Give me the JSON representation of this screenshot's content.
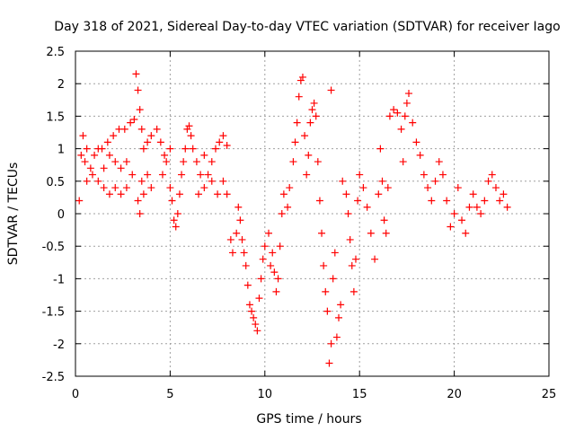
{
  "chart_data": {
    "type": "scatter",
    "title": "Day 318 of 2021, Sidereal Day-to-day VTEC variation (SDTVAR) for receiver Iago",
    "xlabel": "GPS time / hours",
    "ylabel": "SDTVAR / TECUs",
    "xlim": [
      0,
      25
    ],
    "ylim": [
      -2.5,
      2.5
    ],
    "xticks": [
      "0",
      "5",
      "10",
      "15",
      "20",
      "25"
    ],
    "yticks": [
      "2.5",
      "2",
      "1.5",
      "1",
      "0.5",
      "0",
      "-0.5",
      "-1",
      "-1.5",
      "-2",
      "-2.5"
    ],
    "grid": true,
    "marker": "+",
    "color": "#ff0000",
    "series": [
      {
        "name": "SDTVAR",
        "points": [
          [
            0.2,
            0.2
          ],
          [
            0.3,
            0.9
          ],
          [
            0.4,
            1.2
          ],
          [
            0.5,
            0.8
          ],
          [
            0.6,
            1.0
          ],
          [
            0.8,
            0.7
          ],
          [
            1.0,
            0.9
          ],
          [
            1.2,
            1.0
          ],
          [
            0.6,
            0.5
          ],
          [
            0.9,
            0.6
          ],
          [
            1.2,
            0.5
          ],
          [
            1.5,
            0.4
          ],
          [
            1.8,
            0.3
          ],
          [
            2.1,
            0.4
          ],
          [
            2.4,
            0.3
          ],
          [
            2.7,
            0.4
          ],
          [
            1.4,
            1.0
          ],
          [
            1.7,
            1.1
          ],
          [
            2.0,
            1.2
          ],
          [
            2.3,
            1.3
          ],
          [
            2.6,
            1.3
          ],
          [
            2.9,
            1.4
          ],
          [
            3.1,
            1.45
          ],
          [
            1.5,
            0.7
          ],
          [
            1.8,
            0.9
          ],
          [
            2.1,
            0.8
          ],
          [
            2.4,
            0.7
          ],
          [
            2.7,
            0.8
          ],
          [
            3.0,
            0.6
          ],
          [
            3.2,
            2.15
          ],
          [
            3.3,
            1.9
          ],
          [
            3.4,
            1.6
          ],
          [
            3.5,
            1.3
          ],
          [
            3.3,
            0.2
          ],
          [
            3.4,
            0.0
          ],
          [
            3.5,
            0.5
          ],
          [
            3.6,
            0.3
          ],
          [
            3.8,
            0.6
          ],
          [
            4.0,
            0.4
          ],
          [
            3.6,
            1.0
          ],
          [
            3.8,
            1.1
          ],
          [
            4.0,
            1.2
          ],
          [
            4.3,
            1.3
          ],
          [
            4.5,
            1.1
          ],
          [
            4.6,
            0.6
          ],
          [
            4.8,
            0.8
          ],
          [
            5.0,
            0.4
          ],
          [
            5.1,
            0.2
          ],
          [
            4.7,
            0.9
          ],
          [
            5.0,
            1.0
          ],
          [
            5.2,
            -0.1
          ],
          [
            5.3,
            -0.2
          ],
          [
            5.4,
            0.0
          ],
          [
            5.5,
            0.3
          ],
          [
            5.6,
            0.6
          ],
          [
            5.7,
            0.8
          ],
          [
            5.8,
            1.0
          ],
          [
            5.9,
            1.3
          ],
          [
            6.0,
            1.35
          ],
          [
            6.1,
            1.2
          ],
          [
            6.2,
            1.0
          ],
          [
            6.4,
            0.8
          ],
          [
            6.6,
            0.6
          ],
          [
            6.8,
            0.9
          ],
          [
            6.5,
            0.3
          ],
          [
            6.8,
            0.4
          ],
          [
            7.0,
            0.6
          ],
          [
            7.2,
            0.8
          ],
          [
            7.4,
            1.0
          ],
          [
            7.6,
            1.1
          ],
          [
            7.8,
            1.2
          ],
          [
            8.0,
            1.05
          ],
          [
            7.2,
            0.5
          ],
          [
            7.5,
            0.3
          ],
          [
            7.8,
            0.5
          ],
          [
            8.0,
            0.3
          ],
          [
            8.2,
            -0.4
          ],
          [
            8.3,
            -0.6
          ],
          [
            8.5,
            -0.3
          ],
          [
            8.6,
            0.1
          ],
          [
            8.7,
            -0.1
          ],
          [
            8.8,
            -0.4
          ],
          [
            8.9,
            -0.6
          ],
          [
            9.0,
            -0.8
          ],
          [
            9.1,
            -1.1
          ],
          [
            9.2,
            -1.4
          ],
          [
            9.3,
            -1.5
          ],
          [
            9.4,
            -1.6
          ],
          [
            9.5,
            -1.7
          ],
          [
            9.6,
            -1.8
          ],
          [
            9.7,
            -1.3
          ],
          [
            9.8,
            -1.0
          ],
          [
            9.9,
            -0.7
          ],
          [
            10.0,
            -0.5
          ],
          [
            10.2,
            -0.3
          ],
          [
            10.3,
            -0.8
          ],
          [
            10.4,
            -0.6
          ],
          [
            10.5,
            -0.9
          ],
          [
            10.6,
            -1.2
          ],
          [
            10.7,
            -1.0
          ],
          [
            10.8,
            -0.5
          ],
          [
            10.9,
            0.0
          ],
          [
            11.0,
            0.3
          ],
          [
            11.2,
            0.1
          ],
          [
            11.3,
            0.4
          ],
          [
            11.5,
            0.8
          ],
          [
            11.6,
            1.1
          ],
          [
            11.7,
            1.4
          ],
          [
            11.8,
            1.8
          ],
          [
            11.9,
            2.05
          ],
          [
            12.0,
            2.1
          ],
          [
            12.1,
            1.2
          ],
          [
            12.2,
            0.6
          ],
          [
            12.3,
            0.9
          ],
          [
            12.4,
            1.4
          ],
          [
            12.5,
            1.6
          ],
          [
            12.6,
            1.7
          ],
          [
            12.7,
            1.5
          ],
          [
            12.8,
            0.8
          ],
          [
            12.9,
            0.2
          ],
          [
            13.0,
            -0.3
          ],
          [
            13.1,
            -0.8
          ],
          [
            13.2,
            -1.2
          ],
          [
            13.3,
            -1.5
          ],
          [
            13.4,
            -2.3
          ],
          [
            13.5,
            1.9
          ],
          [
            13.5,
            -2.0
          ],
          [
            13.6,
            -1.0
          ],
          [
            13.7,
            -0.6
          ],
          [
            13.8,
            -1.9
          ],
          [
            13.9,
            -1.6
          ],
          [
            14.0,
            -1.4
          ],
          [
            14.1,
            0.5
          ],
          [
            14.3,
            0.3
          ],
          [
            14.4,
            0.0
          ],
          [
            14.5,
            -0.4
          ],
          [
            14.6,
            -0.8
          ],
          [
            14.7,
            -1.2
          ],
          [
            14.8,
            -0.7
          ],
          [
            14.9,
            0.2
          ],
          [
            15.0,
            0.6
          ],
          [
            15.2,
            0.4
          ],
          [
            15.4,
            0.1
          ],
          [
            15.6,
            -0.3
          ],
          [
            15.8,
            -0.7
          ],
          [
            16.0,
            0.3
          ],
          [
            16.1,
            1.0
          ],
          [
            16.2,
            0.5
          ],
          [
            16.3,
            -0.1
          ],
          [
            16.4,
            -0.3
          ],
          [
            16.5,
            0.4
          ],
          [
            16.6,
            1.5
          ],
          [
            16.8,
            1.6
          ],
          [
            17.0,
            1.55
          ],
          [
            17.2,
            1.3
          ],
          [
            17.3,
            0.8
          ],
          [
            17.4,
            1.5
          ],
          [
            17.5,
            1.7
          ],
          [
            17.6,
            1.85
          ],
          [
            17.8,
            1.4
          ],
          [
            18.0,
            1.1
          ],
          [
            18.2,
            0.9
          ],
          [
            18.4,
            0.6
          ],
          [
            18.6,
            0.4
          ],
          [
            18.8,
            0.2
          ],
          [
            19.0,
            0.5
          ],
          [
            19.2,
            0.8
          ],
          [
            19.4,
            0.6
          ],
          [
            19.6,
            0.2
          ],
          [
            19.8,
            -0.2
          ],
          [
            20.0,
            0.0
          ],
          [
            20.2,
            0.4
          ],
          [
            20.4,
            -0.1
          ],
          [
            20.6,
            -0.3
          ],
          [
            20.8,
            0.1
          ],
          [
            21.0,
            0.3
          ],
          [
            21.2,
            0.1
          ],
          [
            21.4,
            0.0
          ],
          [
            21.6,
            0.2
          ],
          [
            21.8,
            0.5
          ],
          [
            22.0,
            0.6
          ],
          [
            22.2,
            0.4
          ],
          [
            22.4,
            0.2
          ],
          [
            22.6,
            0.3
          ],
          [
            22.8,
            0.1
          ]
        ]
      }
    ]
  }
}
